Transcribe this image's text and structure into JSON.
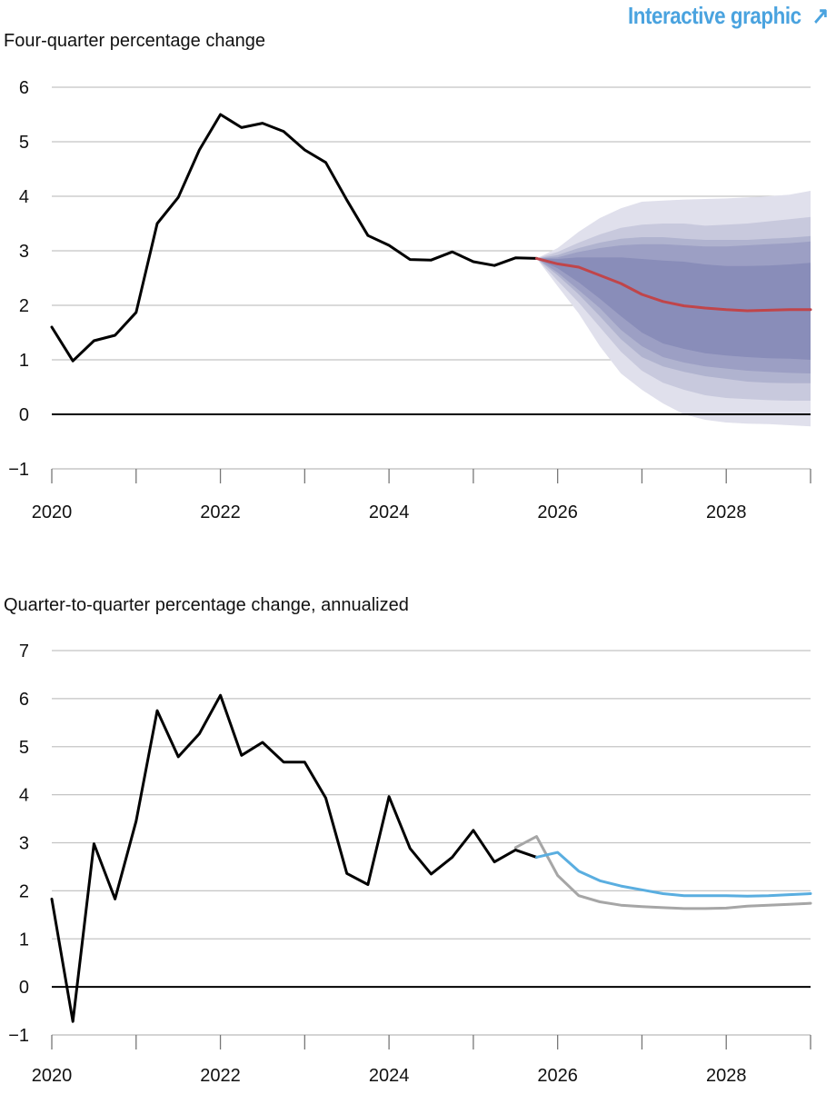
{
  "header": {
    "link_label": "Interactive graphic",
    "link_icon": "arrow-up-right-icon",
    "link_color": "#4aa3df"
  },
  "chart_data": [
    {
      "type": "line",
      "title": "Four-quarter percentage change",
      "xlim": [
        2020,
        2029
      ],
      "ylim": [
        -1,
        6
      ],
      "yticks": [
        -1,
        0,
        1,
        2,
        3,
        4,
        5,
        6
      ],
      "ytick_labels": [
        "−1",
        "0",
        "1",
        "2",
        "3",
        "4",
        "5",
        "6"
      ],
      "xticks": [
        2020,
        2021,
        2022,
        2023,
        2024,
        2025,
        2026,
        2027,
        2028,
        2029
      ],
      "xtick_labels": [
        "2020",
        "",
        "2022",
        "",
        "2024",
        "",
        "2026",
        "",
        "2028",
        ""
      ],
      "grid": true,
      "series": [
        {
          "role": "actual",
          "color": "#000000",
          "x": [
            2020.0,
            2020.25,
            2020.5,
            2020.75,
            2021.0,
            2021.25,
            2021.5,
            2021.75,
            2022.0,
            2022.25,
            2022.5,
            2022.75,
            2023.0,
            2023.25,
            2023.5,
            2023.75,
            2024.0,
            2024.25,
            2024.5,
            2024.75,
            2025.0,
            2025.25,
            2025.5,
            2025.75
          ],
          "y": [
            1.6,
            0.98,
            1.35,
            1.45,
            1.87,
            3.5,
            3.98,
            4.85,
            5.5,
            5.26,
            5.34,
            5.19,
            4.85,
            4.62,
            3.93,
            3.28,
            3.1,
            2.84,
            2.83,
            2.98,
            2.8,
            2.73,
            2.87,
            2.86
          ]
        },
        {
          "role": "forecast",
          "color": "#c0454a",
          "x": [
            2025.75,
            2026.0,
            2026.25,
            2026.5,
            2026.75,
            2027.0,
            2027.25,
            2027.5,
            2027.75,
            2028.0,
            2028.25,
            2028.5,
            2028.75,
            2029.0
          ],
          "y": [
            2.86,
            2.76,
            2.7,
            2.55,
            2.4,
            2.2,
            2.07,
            1.99,
            1.95,
            1.92,
            1.9,
            1.91,
            1.92,
            1.92
          ]
        }
      ],
      "bands": {
        "x": [
          2025.75,
          2026.0,
          2026.25,
          2026.5,
          2026.75,
          2027.0,
          2027.25,
          2027.5,
          2027.75,
          2028.0,
          2028.25,
          2028.5,
          2028.75,
          2029.0
        ],
        "colors": [
          "#e0e0ec",
          "#c8c9dd",
          "#b0b3cf",
          "#9c9fc4",
          "#898db9"
        ],
        "upper": [
          [
            2.86,
            3.05,
            3.35,
            3.6,
            3.78,
            3.9,
            3.92,
            3.94,
            3.95,
            3.96,
            3.98,
            4.0,
            4.03,
            4.1
          ],
          [
            2.86,
            2.98,
            3.15,
            3.3,
            3.42,
            3.48,
            3.5,
            3.5,
            3.46,
            3.48,
            3.5,
            3.54,
            3.58,
            3.62
          ],
          [
            2.86,
            2.92,
            3.05,
            3.15,
            3.22,
            3.25,
            3.25,
            3.22,
            3.2,
            3.2,
            3.2,
            3.22,
            3.24,
            3.27
          ],
          [
            2.86,
            2.88,
            2.98,
            3.05,
            3.1,
            3.12,
            3.12,
            3.1,
            3.08,
            3.08,
            3.1,
            3.12,
            3.14,
            3.17
          ],
          [
            2.86,
            2.85,
            2.88,
            2.88,
            2.88,
            2.85,
            2.82,
            2.8,
            2.75,
            2.72,
            2.72,
            2.73,
            2.75,
            2.78
          ]
        ],
        "lower": [
          [
            2.86,
            2.35,
            1.85,
            1.25,
            0.75,
            0.45,
            0.2,
            0.0,
            -0.1,
            -0.15,
            -0.17,
            -0.18,
            -0.2,
            -0.22
          ],
          [
            2.86,
            2.45,
            2.05,
            1.6,
            1.15,
            0.8,
            0.58,
            0.45,
            0.35,
            0.3,
            0.28,
            0.26,
            0.25,
            0.25
          ],
          [
            2.86,
            2.55,
            2.2,
            1.8,
            1.38,
            1.05,
            0.88,
            0.78,
            0.7,
            0.65,
            0.6,
            0.58,
            0.57,
            0.57
          ],
          [
            2.86,
            2.6,
            2.28,
            1.95,
            1.55,
            1.25,
            1.05,
            0.95,
            0.88,
            0.84,
            0.8,
            0.78,
            0.76,
            0.75
          ],
          [
            2.86,
            2.68,
            2.42,
            2.12,
            1.8,
            1.5,
            1.3,
            1.2,
            1.12,
            1.08,
            1.05,
            1.03,
            1.02,
            1.0
          ]
        ]
      }
    },
    {
      "type": "line",
      "title": "Quarter-to-quarter percentage change, annualized",
      "xlim": [
        2020,
        2029
      ],
      "ylim": [
        -1,
        7
      ],
      "yticks": [
        -1,
        0,
        1,
        2,
        3,
        4,
        5,
        6,
        7
      ],
      "ytick_labels": [
        "−1",
        "0",
        "1",
        "2",
        "3",
        "4",
        "5",
        "6",
        "7"
      ],
      "xticks": [
        2020,
        2021,
        2022,
        2023,
        2024,
        2025,
        2026,
        2027,
        2028,
        2029
      ],
      "xtick_labels": [
        "2020",
        "",
        "2022",
        "",
        "2024",
        "",
        "2026",
        "",
        "2028",
        ""
      ],
      "grid": true,
      "series": [
        {
          "role": "prior-forecast",
          "color": "#a6a6a6",
          "x": [
            2025.5,
            2025.75,
            2026.0,
            2026.25,
            2026.5,
            2026.75,
            2027.0,
            2027.25,
            2027.5,
            2027.75,
            2028.0,
            2028.25,
            2028.5,
            2028.75,
            2029.0
          ],
          "y": [
            2.9,
            3.13,
            2.32,
            1.9,
            1.77,
            1.7,
            1.67,
            1.65,
            1.63,
            1.63,
            1.64,
            1.68,
            1.7,
            1.72,
            1.74
          ]
        },
        {
          "role": "actual",
          "color": "#000000",
          "x": [
            2020.0,
            2020.25,
            2020.5,
            2020.75,
            2021.0,
            2021.25,
            2021.5,
            2021.75,
            2022.0,
            2022.25,
            2022.5,
            2022.75,
            2023.0,
            2023.25,
            2023.5,
            2023.75,
            2024.0,
            2024.25,
            2024.5,
            2024.75,
            2025.0,
            2025.25,
            2025.5,
            2025.75
          ],
          "y": [
            1.83,
            -0.72,
            2.98,
            1.83,
            3.45,
            5.75,
            4.79,
            5.27,
            6.07,
            4.82,
            5.09,
            4.68,
            4.68,
            3.93,
            2.36,
            2.13,
            3.96,
            2.88,
            2.35,
            2.7,
            3.26,
            2.6,
            2.85,
            2.7
          ]
        },
        {
          "role": "forecast",
          "color": "#5aaee0",
          "x": [
            2025.75,
            2026.0,
            2026.25,
            2026.5,
            2026.75,
            2027.0,
            2027.25,
            2027.5,
            2027.75,
            2028.0,
            2028.25,
            2028.5,
            2028.75,
            2029.0
          ],
          "y": [
            2.7,
            2.8,
            2.41,
            2.21,
            2.1,
            2.02,
            1.94,
            1.9,
            1.9,
            1.9,
            1.89,
            1.9,
            1.92,
            1.94
          ]
        }
      ]
    }
  ]
}
